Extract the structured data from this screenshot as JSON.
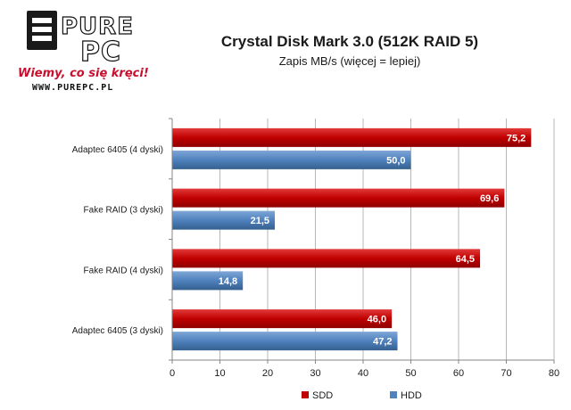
{
  "logo": {
    "top": "PURE",
    "bottom": "PC",
    "slogan": "Wiemy, co się kręci!",
    "url": "WWW.PUREPC.PL"
  },
  "chart_data": {
    "type": "bar",
    "orientation": "horizontal",
    "title": "Crystal Disk Mark 3.0 (512K RAID 5)",
    "subtitle": "Zapis MB/s (więcej = lepiej)",
    "categories": [
      "Adaptec 6405 (4 dyski)",
      "Fake RAID (3 dyski)",
      "Fake RAID (4 dyski)",
      "Adaptec 6405 (3 dyski)"
    ],
    "series": [
      {
        "name": "SDD",
        "color": "#c00000",
        "values": [
          75.2,
          69.6,
          64.5,
          46.0
        ],
        "labels": [
          "75,2",
          "69,6",
          "64,5",
          "46,0"
        ]
      },
      {
        "name": "HDD",
        "color": "#4f81bd",
        "values": [
          50.0,
          21.5,
          14.8,
          47.2
        ],
        "labels": [
          "50,0",
          "21,5",
          "14,8",
          "47,2"
        ]
      }
    ],
    "xlim": [
      0,
      80
    ],
    "ticks": [
      "0",
      "10",
      "20",
      "30",
      "40",
      "50",
      "60",
      "70",
      "80"
    ],
    "grid": true,
    "legend": "bottom"
  }
}
